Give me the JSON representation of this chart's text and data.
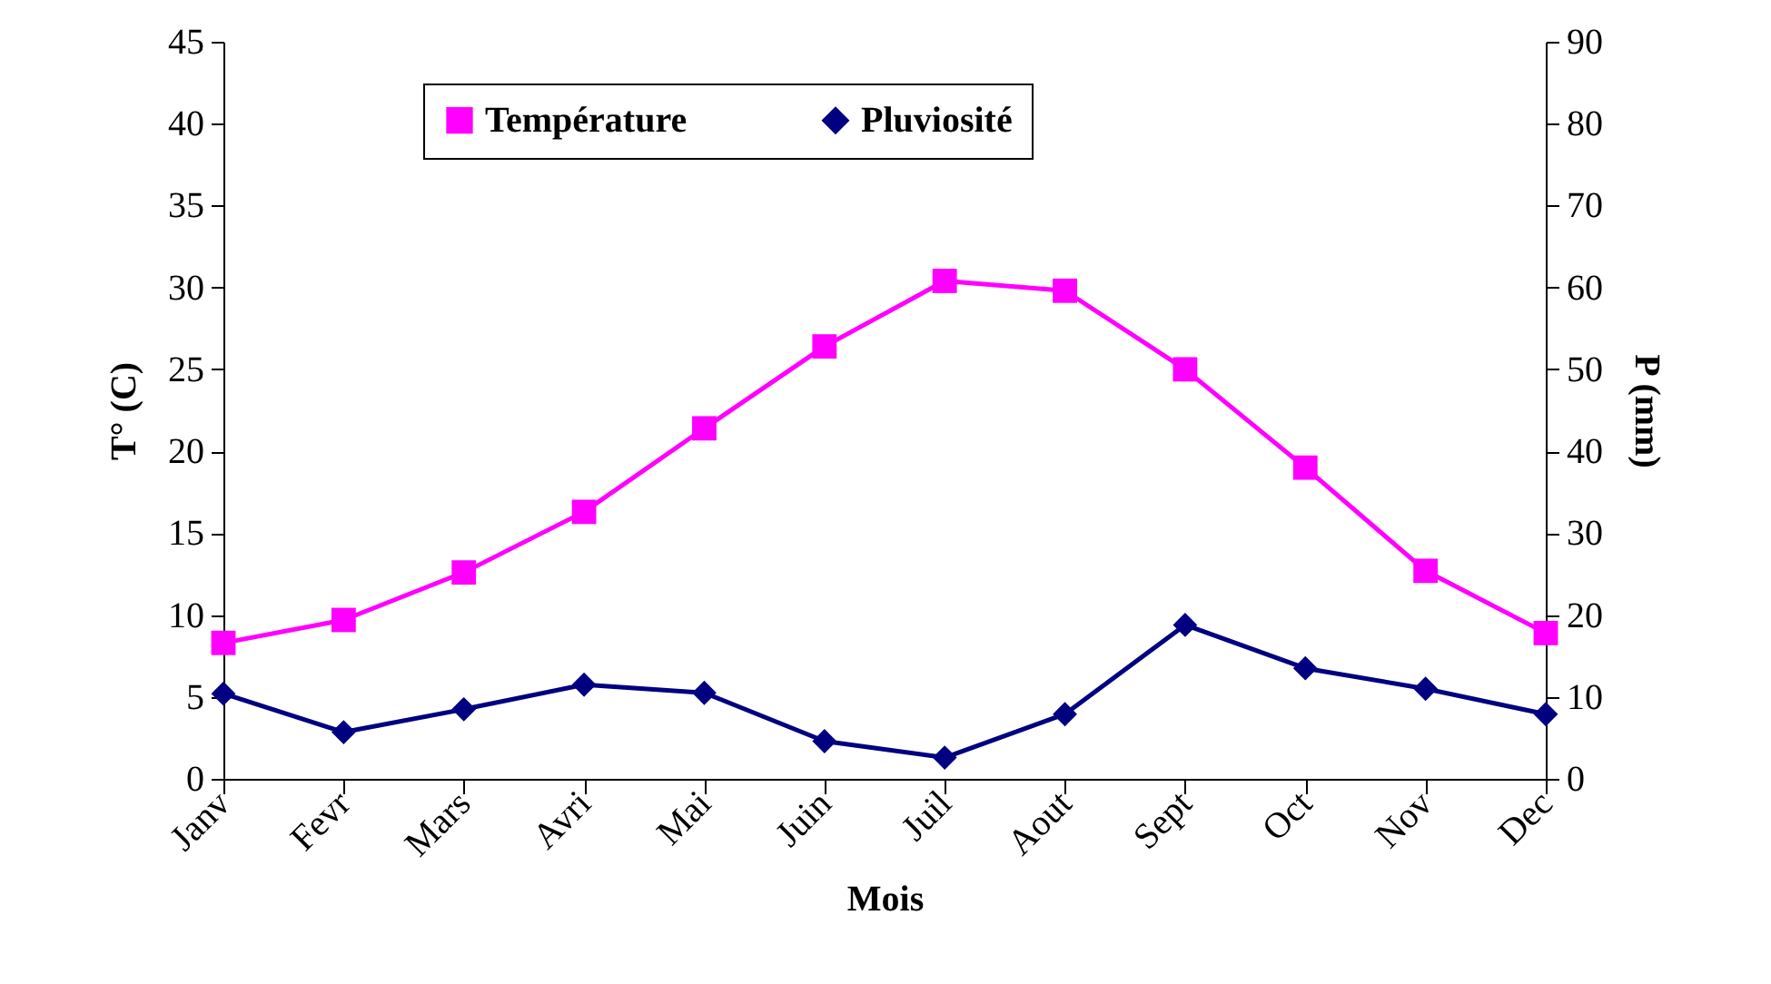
{
  "chart_data": {
    "type": "line",
    "xlabel": "Mois",
    "ylabel": "T° (C)",
    "y2label": "P (mm)",
    "categories": [
      "Janv",
      "Fevr",
      "Mars",
      "Avri",
      "Mai",
      "Juin",
      "Juil",
      "Aout",
      "Sept",
      "Oct",
      "Nov",
      "Dec"
    ],
    "series": [
      {
        "name": "Température",
        "color": "#ff00ff",
        "marker": "square",
        "values": [
          8.3,
          9.7,
          12.6,
          16.3,
          21.4,
          26.4,
          30.4,
          29.8,
          25.0,
          19.0,
          12.7,
          8.9
        ]
      },
      {
        "name": "Pluviosité",
        "color": "#000080",
        "marker": "diamond",
        "axis": "y2",
        "values": [
          10.4,
          5.7,
          8.5,
          11.5,
          10.5,
          4.6,
          2.6,
          7.9,
          18.8,
          13.5,
          11.0,
          7.9
        ]
      }
    ],
    "ylim": [
      0,
      45
    ],
    "yticks": [
      0,
      5,
      10,
      15,
      20,
      25,
      30,
      35,
      40,
      45
    ],
    "y2lim": [
      0,
      90
    ],
    "y2ticks": [
      0,
      10,
      20,
      30,
      40,
      50,
      60,
      70,
      80,
      90
    ],
    "grid": false,
    "legend": "top",
    "line_style": "solid"
  }
}
